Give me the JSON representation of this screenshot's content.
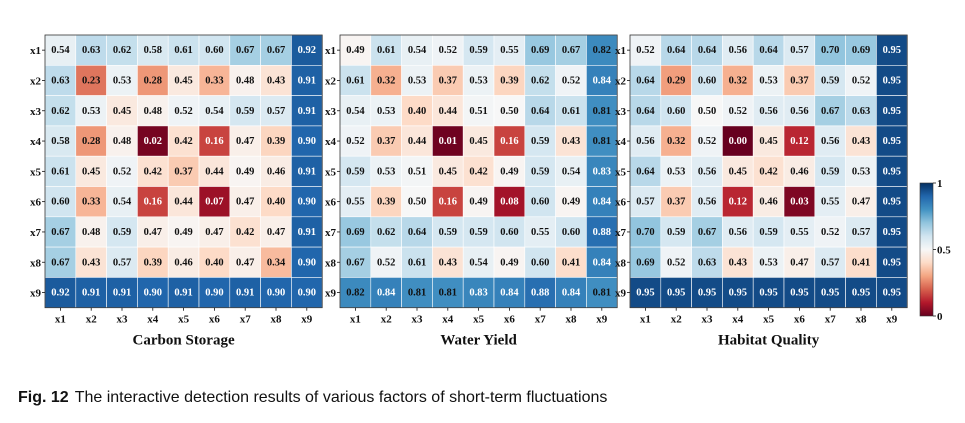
{
  "caption": {
    "label": "Fig. 12",
    "text": "The interactive detection results of various factors of short-term fluctuations"
  },
  "chart_data": [
    {
      "type": "heatmap",
      "title": "Carbon Storage",
      "rows": [
        "x1",
        "x2",
        "x3",
        "x4",
        "x5",
        "x6",
        "x7",
        "x8",
        "x9"
      ],
      "cols": [
        "x1",
        "x2",
        "x3",
        "x4",
        "x5",
        "x6",
        "x7",
        "x8",
        "x9"
      ],
      "values": [
        [
          0.54,
          0.63,
          0.62,
          0.58,
          0.61,
          0.6,
          0.67,
          0.67,
          0.92
        ],
        [
          0.63,
          0.23,
          0.53,
          0.28,
          0.45,
          0.33,
          0.48,
          0.43,
          0.91
        ],
        [
          0.62,
          0.53,
          0.45,
          0.48,
          0.52,
          0.54,
          0.59,
          0.57,
          0.91
        ],
        [
          0.58,
          0.28,
          0.48,
          0.02,
          0.42,
          0.16,
          0.47,
          0.39,
          0.9
        ],
        [
          0.61,
          0.45,
          0.52,
          0.42,
          0.37,
          0.44,
          0.49,
          0.46,
          0.91
        ],
        [
          0.6,
          0.33,
          0.54,
          0.16,
          0.44,
          0.07,
          0.47,
          0.4,
          0.9
        ],
        [
          0.67,
          0.48,
          0.59,
          0.47,
          0.49,
          0.47,
          0.42,
          0.47,
          0.91
        ],
        [
          0.67,
          0.43,
          0.57,
          0.39,
          0.46,
          0.4,
          0.47,
          0.34,
          0.9
        ],
        [
          0.92,
          0.91,
          0.91,
          0.9,
          0.91,
          0.9,
          0.91,
          0.9,
          0.9
        ]
      ]
    },
    {
      "type": "heatmap",
      "title": "Water Yield",
      "rows": [
        "x1",
        "x2",
        "x3",
        "x4",
        "x5",
        "x6",
        "x7",
        "x8",
        "x9"
      ],
      "cols": [
        "x1",
        "x2",
        "x3",
        "x4",
        "x5",
        "x6",
        "x7",
        "x8",
        "x9"
      ],
      "values": [
        [
          0.49,
          0.61,
          0.54,
          0.52,
          0.59,
          0.55,
          0.69,
          0.67,
          0.82
        ],
        [
          0.61,
          0.32,
          0.53,
          0.37,
          0.53,
          0.39,
          0.62,
          0.52,
          0.84
        ],
        [
          0.54,
          0.53,
          0.4,
          0.44,
          0.51,
          0.5,
          0.64,
          0.61,
          0.81
        ],
        [
          0.52,
          0.37,
          0.44,
          0.01,
          0.45,
          0.16,
          0.59,
          0.43,
          0.81
        ],
        [
          0.59,
          0.53,
          0.51,
          0.45,
          0.42,
          0.49,
          0.59,
          0.54,
          0.83
        ],
        [
          0.55,
          0.39,
          0.5,
          0.16,
          0.49,
          0.08,
          0.6,
          0.49,
          0.84
        ],
        [
          0.69,
          0.62,
          0.64,
          0.59,
          0.59,
          0.6,
          0.55,
          0.6,
          0.88
        ],
        [
          0.67,
          0.52,
          0.61,
          0.43,
          0.54,
          0.49,
          0.6,
          0.41,
          0.84
        ],
        [
          0.82,
          0.84,
          0.81,
          0.81,
          0.83,
          0.84,
          0.88,
          0.84,
          0.81
        ]
      ]
    },
    {
      "type": "heatmap",
      "title": "Habitat Quality",
      "rows": [
        "x1",
        "x2",
        "x3",
        "x4",
        "x5",
        "x6",
        "x7",
        "x8",
        "x9"
      ],
      "cols": [
        "x1",
        "x2",
        "x3",
        "x4",
        "x5",
        "x6",
        "x7",
        "x8",
        "x9"
      ],
      "values": [
        [
          0.52,
          0.64,
          0.64,
          0.56,
          0.64,
          0.57,
          0.7,
          0.69,
          0.95
        ],
        [
          0.64,
          0.29,
          0.6,
          0.32,
          0.53,
          0.37,
          0.59,
          0.52,
          0.95
        ],
        [
          0.64,
          0.6,
          0.5,
          0.52,
          0.56,
          0.56,
          0.67,
          0.63,
          0.95
        ],
        [
          0.56,
          0.32,
          0.52,
          0.0,
          0.45,
          0.12,
          0.56,
          0.43,
          0.95
        ],
        [
          0.64,
          0.53,
          0.56,
          0.45,
          0.42,
          0.46,
          0.59,
          0.53,
          0.95
        ],
        [
          0.57,
          0.37,
          0.56,
          0.12,
          0.46,
          0.03,
          0.55,
          0.47,
          0.95
        ],
        [
          0.7,
          0.59,
          0.67,
          0.56,
          0.59,
          0.55,
          0.52,
          0.57,
          0.95
        ],
        [
          0.69,
          0.52,
          0.63,
          0.43,
          0.53,
          0.47,
          0.57,
          0.41,
          0.95
        ],
        [
          0.95,
          0.95,
          0.95,
          0.95,
          0.95,
          0.95,
          0.95,
          0.95,
          0.95
        ]
      ]
    }
  ],
  "colorbar": {
    "range": [
      0,
      1
    ],
    "ticks": [
      {
        "value": 1,
        "label": "1"
      },
      {
        "value": 0.5,
        "label": "0.5"
      },
      {
        "value": 0,
        "label": "0"
      }
    ],
    "colormap": "RdBu",
    "colors": [
      "#67001f",
      "#b2182b",
      "#d6604d",
      "#f4a582",
      "#fddbc7",
      "#f7f7f7",
      "#d1e5f0",
      "#92c5de",
      "#4393c3",
      "#2166ac",
      "#053061"
    ]
  }
}
